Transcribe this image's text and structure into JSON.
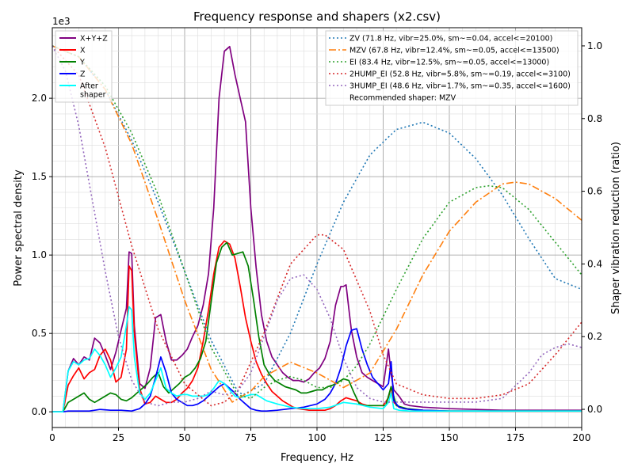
{
  "chart_data": {
    "type": "line",
    "title": "Frequency response and shapers (x2.csv)",
    "xlabel": "Frequency, Hz",
    "ylabel": "Power spectral density",
    "y2label": "Shaper vibration reduction (ratio)",
    "y_multiplier": "1e3",
    "xlim": [
      0,
      200
    ],
    "ylim": [
      -0.1,
      2.45
    ],
    "y2lim": [
      -0.05,
      1.05
    ],
    "xticks": [
      0,
      25,
      50,
      75,
      100,
      125,
      150,
      175,
      200
    ],
    "yticks": [
      0.0,
      0.5,
      1.0,
      1.5,
      2.0
    ],
    "y2ticks": [
      0.0,
      0.2,
      0.4,
      0.6,
      0.8,
      1.0
    ],
    "grid": true,
    "legend_left_placement": "top-left",
    "legend_right_placement": "top-right",
    "recommended_text": "Recommended shaper: MZV",
    "series": [
      {
        "name": "X+Y+Z",
        "color": "#800080",
        "axis": "left",
        "x": [
          0,
          4,
          6,
          8,
          10,
          12,
          14,
          16,
          18,
          20,
          22,
          24,
          26,
          28,
          29,
          30,
          31,
          33,
          35,
          37,
          39,
          41,
          43,
          45,
          47,
          49,
          51,
          53,
          55,
          57,
          59,
          61,
          63,
          65,
          67,
          69,
          71,
          73,
          75,
          77,
          79,
          81,
          83,
          85,
          87,
          89,
          91,
          93,
          95,
          97,
          99,
          101,
          103,
          105,
          107,
          109,
          110,
          111,
          112,
          113,
          115,
          117,
          119,
          121,
          123,
          125,
          127,
          128,
          129,
          131,
          133,
          135,
          140,
          150,
          160,
          170,
          180,
          190,
          200
        ],
        "y": [
          0,
          0,
          0.26,
          0.34,
          0.3,
          0.35,
          0.33,
          0.47,
          0.44,
          0.36,
          0.27,
          0.38,
          0.52,
          0.66,
          1.02,
          1.01,
          0.55,
          0.18,
          0.15,
          0.28,
          0.6,
          0.62,
          0.45,
          0.33,
          0.33,
          0.36,
          0.4,
          0.48,
          0.55,
          0.68,
          0.88,
          1.3,
          2.0,
          2.3,
          2.33,
          2.15,
          2.0,
          1.85,
          1.3,
          0.92,
          0.62,
          0.45,
          0.35,
          0.3,
          0.25,
          0.22,
          0.2,
          0.2,
          0.19,
          0.21,
          0.25,
          0.28,
          0.34,
          0.45,
          0.68,
          0.8,
          0.8,
          0.81,
          0.66,
          0.52,
          0.35,
          0.25,
          0.22,
          0.2,
          0.18,
          0.16,
          0.4,
          0.24,
          0.14,
          0.1,
          0.05,
          0.04,
          0.03,
          0.02,
          0.015,
          0.01,
          0.01,
          0.01,
          0.01
        ]
      },
      {
        "name": "X",
        "color": "#ff0000",
        "axis": "left",
        "x": [
          0,
          4,
          6,
          8,
          10,
          12,
          14,
          16,
          18,
          20,
          22,
          24,
          26,
          28,
          29,
          30,
          31,
          33,
          35,
          37,
          39,
          41,
          43,
          45,
          47,
          49,
          51,
          53,
          55,
          57,
          59,
          61,
          63,
          65,
          67,
          69,
          71,
          73,
          75,
          77,
          79,
          81,
          83,
          85,
          87,
          89,
          91,
          93,
          95,
          97,
          99,
          101,
          103,
          105,
          107,
          109,
          111,
          113,
          115,
          117,
          119,
          121,
          123,
          125,
          127,
          128,
          129,
          131,
          133,
          135,
          140,
          150,
          160,
          170,
          180,
          190,
          200
        ],
        "y": [
          0,
          0,
          0.17,
          0.23,
          0.28,
          0.21,
          0.25,
          0.27,
          0.36,
          0.4,
          0.33,
          0.19,
          0.22,
          0.4,
          0.93,
          0.9,
          0.5,
          0.15,
          0.05,
          0.06,
          0.1,
          0.08,
          0.06,
          0.06,
          0.08,
          0.12,
          0.15,
          0.2,
          0.28,
          0.45,
          0.65,
          0.88,
          1.05,
          1.09,
          1.07,
          0.98,
          0.8,
          0.6,
          0.45,
          0.32,
          0.24,
          0.18,
          0.13,
          0.1,
          0.07,
          0.05,
          0.03,
          0.02,
          0.015,
          0.01,
          0.01,
          0.01,
          0.01,
          0.02,
          0.04,
          0.07,
          0.09,
          0.08,
          0.07,
          0.05,
          0.04,
          0.04,
          0.04,
          0.04,
          0.09,
          0.16,
          0.06,
          0.03,
          0.02,
          0.015,
          0.01,
          0.005,
          0.005,
          0.005,
          0.005,
          0.005,
          0.005
        ]
      },
      {
        "name": "Y",
        "color": "#008000",
        "axis": "left",
        "x": [
          0,
          4,
          6,
          8,
          10,
          12,
          14,
          16,
          18,
          20,
          22,
          24,
          26,
          28,
          30,
          32,
          34,
          36,
          38,
          40,
          42,
          44,
          46,
          48,
          50,
          52,
          54,
          56,
          58,
          60,
          62,
          64,
          66,
          68,
          70,
          72,
          74,
          76,
          78,
          80,
          82,
          84,
          86,
          88,
          90,
          92,
          94,
          96,
          98,
          100,
          102,
          104,
          106,
          108,
          110,
          112,
          114,
          116,
          118,
          120,
          122,
          124,
          126,
          128,
          130,
          132,
          134,
          140,
          150,
          160,
          170,
          180,
          190,
          200
        ],
        "y": [
          0,
          0,
          0.06,
          0.08,
          0.1,
          0.12,
          0.08,
          0.06,
          0.08,
          0.1,
          0.12,
          0.11,
          0.08,
          0.07,
          0.09,
          0.12,
          0.15,
          0.18,
          0.22,
          0.25,
          0.16,
          0.12,
          0.15,
          0.18,
          0.22,
          0.24,
          0.28,
          0.34,
          0.45,
          0.7,
          0.95,
          1.05,
          1.08,
          1.0,
          1.01,
          1.02,
          0.93,
          0.72,
          0.48,
          0.3,
          0.24,
          0.2,
          0.18,
          0.16,
          0.15,
          0.14,
          0.12,
          0.12,
          0.13,
          0.14,
          0.14,
          0.16,
          0.17,
          0.19,
          0.21,
          0.2,
          0.12,
          0.05,
          0.04,
          0.04,
          0.04,
          0.04,
          0.04,
          0.16,
          0.04,
          0.03,
          0.02,
          0.01,
          0.005,
          0.005,
          0.005,
          0.005,
          0.005,
          0.005
        ]
      },
      {
        "name": "Z",
        "color": "#0000ff",
        "axis": "left",
        "x": [
          0,
          4,
          6,
          10,
          14,
          18,
          22,
          26,
          30,
          33,
          35,
          37,
          39,
          41,
          43,
          45,
          47,
          49,
          51,
          53,
          55,
          57,
          59,
          61,
          63,
          65,
          67,
          69,
          71,
          73,
          75,
          77,
          79,
          81,
          85,
          90,
          95,
          100,
          103,
          105,
          107,
          109,
          111,
          113,
          115,
          117,
          119,
          121,
          123,
          125,
          127,
          128,
          129,
          131,
          133,
          135,
          140,
          150,
          160,
          170,
          180,
          190,
          200
        ],
        "y": [
          0,
          0,
          0.005,
          0.005,
          0.005,
          0.015,
          0.01,
          0.01,
          0.005,
          0.02,
          0.05,
          0.1,
          0.22,
          0.35,
          0.25,
          0.12,
          0.08,
          0.06,
          0.04,
          0.04,
          0.05,
          0.07,
          0.1,
          0.13,
          0.16,
          0.18,
          0.15,
          0.12,
          0.08,
          0.05,
          0.02,
          0.01,
          0.005,
          0.005,
          0.01,
          0.02,
          0.03,
          0.05,
          0.08,
          0.12,
          0.18,
          0.28,
          0.42,
          0.52,
          0.53,
          0.4,
          0.3,
          0.22,
          0.18,
          0.14,
          0.18,
          0.32,
          0.07,
          0.03,
          0.02,
          0.015,
          0.01,
          0.005,
          0.005,
          0.005,
          0.005,
          0.005,
          0.005
        ]
      },
      {
        "name": "After\nshaper",
        "color": "#00ffff",
        "axis": "left",
        "x": [
          0,
          4,
          6,
          8,
          10,
          12,
          14,
          16,
          18,
          20,
          22,
          24,
          26,
          28,
          29,
          30,
          31,
          33,
          35,
          37,
          39,
          41,
          43,
          45,
          47,
          49,
          51,
          53,
          55,
          57,
          59,
          61,
          63,
          65,
          67,
          69,
          71,
          73,
          75,
          77,
          79,
          81,
          85,
          90,
          95,
          100,
          105,
          110,
          115,
          120,
          125,
          127,
          128,
          129,
          131,
          135,
          140,
          150,
          160,
          170,
          180,
          190,
          200
        ],
        "y": [
          0,
          0,
          0.26,
          0.32,
          0.3,
          0.33,
          0.34,
          0.4,
          0.36,
          0.3,
          0.22,
          0.28,
          0.35,
          0.55,
          0.67,
          0.65,
          0.35,
          0.12,
          0.08,
          0.12,
          0.2,
          0.28,
          0.15,
          0.12,
          0.1,
          0.11,
          0.11,
          0.1,
          0.1,
          0.1,
          0.11,
          0.15,
          0.2,
          0.18,
          0.14,
          0.1,
          0.09,
          0.1,
          0.11,
          0.11,
          0.09,
          0.07,
          0.05,
          0.03,
          0.02,
          0.02,
          0.03,
          0.06,
          0.05,
          0.03,
          0.02,
          0.06,
          0.12,
          0.02,
          0.01,
          0.005,
          0.005,
          0.005,
          0.005,
          0.005,
          0.005,
          0.005,
          0.005
        ]
      },
      {
        "name": "ZV (71.8 Hz, vibr=25.0%, sm~=0.04, accel<=20100)",
        "color": "#1f77b4",
        "axis": "right",
        "dash": "dotted",
        "x": [
          0,
          10,
          20,
          30,
          40,
          50,
          60,
          70,
          72,
          80,
          90,
          100,
          110,
          120,
          130,
          140,
          150,
          160,
          170,
          180,
          190,
          200
        ],
        "y": [
          1.0,
          0.97,
          0.88,
          0.74,
          0.57,
          0.38,
          0.19,
          0.05,
          0.04,
          0.07,
          0.21,
          0.4,
          0.57,
          0.7,
          0.77,
          0.79,
          0.76,
          0.69,
          0.59,
          0.47,
          0.36,
          0.33
        ]
      },
      {
        "name": "MZV (67.8 Hz, vibr=12.4%, sm~=0.05, accel<=13500)",
        "color": "#ff7f0e",
        "axis": "right",
        "dash": "dashdot",
        "x": [
          0,
          10,
          20,
          30,
          40,
          50,
          60,
          68,
          75,
          80,
          90,
          100,
          110,
          120,
          130,
          140,
          150,
          160,
          170,
          175,
          180,
          190,
          200
        ],
        "y": [
          1.0,
          0.97,
          0.88,
          0.73,
          0.52,
          0.3,
          0.11,
          0.02,
          0.05,
          0.09,
          0.13,
          0.1,
          0.06,
          0.1,
          0.22,
          0.37,
          0.49,
          0.57,
          0.62,
          0.625,
          0.62,
          0.58,
          0.52
        ]
      },
      {
        "name": "EI (83.4 Hz, vibr=12.5%, sm~=0.05, accel<=13000)",
        "color": "#2ca02c",
        "axis": "right",
        "dash": "dotted",
        "x": [
          0,
          10,
          20,
          30,
          40,
          50,
          60,
          70,
          75,
          80,
          85,
          90,
          95,
          100,
          105,
          110,
          115,
          120,
          130,
          140,
          150,
          160,
          165,
          170,
          180,
          190,
          200
        ],
        "y": [
          1.0,
          0.97,
          0.89,
          0.76,
          0.59,
          0.38,
          0.17,
          0.04,
          0.03,
          0.06,
          0.08,
          0.09,
          0.08,
          0.06,
          0.06,
          0.08,
          0.12,
          0.18,
          0.33,
          0.47,
          0.57,
          0.61,
          0.615,
          0.61,
          0.55,
          0.46,
          0.37
        ]
      },
      {
        "name": "2HUMP_EI (52.8 Hz, vibr=5.8%, sm~=0.19, accel<=3100)",
        "color": "#d62728",
        "axis": "right",
        "dash": "dotted",
        "x": [
          0,
          10,
          20,
          30,
          40,
          50,
          60,
          65,
          70,
          80,
          90,
          100,
          103,
          110,
          120,
          125,
          130,
          140,
          150,
          160,
          170,
          180,
          190,
          200
        ],
        "y": [
          1.0,
          0.92,
          0.72,
          0.45,
          0.22,
          0.07,
          0.01,
          0.02,
          0.05,
          0.21,
          0.4,
          0.48,
          0.48,
          0.44,
          0.27,
          0.15,
          0.07,
          0.04,
          0.03,
          0.03,
          0.04,
          0.07,
          0.15,
          0.24
        ]
      },
      {
        "name": "3HUMP_EI (48.6 Hz, vibr=1.7%, sm~=0.35, accel<=1600)",
        "color": "#9467bd",
        "axis": "right",
        "dash": "dotted",
        "x": [
          0,
          5,
          10,
          15,
          20,
          25,
          30,
          35,
          40,
          45,
          50,
          55,
          60,
          65,
          70,
          75,
          80,
          85,
          90,
          95,
          100,
          105,
          110,
          115,
          120,
          125,
          130,
          140,
          150,
          160,
          170,
          180,
          185,
          190,
          195,
          200
        ],
        "y": [
          1.0,
          0.93,
          0.78,
          0.58,
          0.38,
          0.2,
          0.08,
          0.02,
          0.01,
          0.02,
          0.02,
          0.03,
          0.05,
          0.04,
          0.05,
          0.1,
          0.2,
          0.3,
          0.36,
          0.37,
          0.33,
          0.25,
          0.14,
          0.06,
          0.03,
          0.02,
          0.02,
          0.02,
          0.02,
          0.02,
          0.03,
          0.1,
          0.15,
          0.17,
          0.18,
          0.17
        ]
      }
    ]
  }
}
